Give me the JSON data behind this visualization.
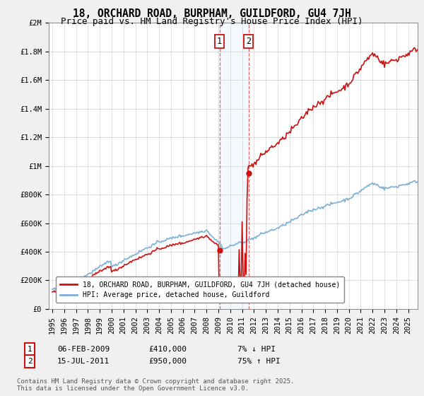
{
  "title": "18, ORCHARD ROAD, BURPHAM, GUILDFORD, GU4 7JH",
  "subtitle": "Price paid vs. HM Land Registry's House Price Index (HPI)",
  "ylim": [
    0,
    2000000
  ],
  "yticks": [
    0,
    200000,
    400000,
    600000,
    800000,
    1000000,
    1200000,
    1400000,
    1600000,
    1800000,
    2000000
  ],
  "ytick_labels": [
    "£0",
    "£200K",
    "£400K",
    "£600K",
    "£800K",
    "£1M",
    "£1.2M",
    "£1.4M",
    "£1.6M",
    "£1.8M",
    "£2M"
  ],
  "background_color": "#f0f0f0",
  "plot_bg": "#ffffff",
  "hpi_line_color": "#7bafd4",
  "price_line_color": "#cc1111",
  "transaction1_date": 2009.09,
  "transaction1_price": 410000,
  "transaction2_date": 2011.54,
  "transaction2_price": 950000,
  "shade_color": "#ddeeff",
  "legend1_label": "18, ORCHARD ROAD, BURPHAM, GUILDFORD, GU4 7JH (detached house)",
  "legend2_label": "HPI: Average price, detached house, Guildford",
  "annot1_label": "1",
  "annot2_label": "2",
  "annot1_date": "06-FEB-2009",
  "annot1_price": "£410,000",
  "annot1_hpi": "7% ↓ HPI",
  "annot2_date": "15-JUL-2011",
  "annot2_price": "£950,000",
  "annot2_hpi": "75% ↑ HPI",
  "copyright_text": "Contains HM Land Registry data © Crown copyright and database right 2025.\nThis data is licensed under the Open Government Licence v3.0.",
  "title_fontsize": 10.5,
  "subtitle_fontsize": 9
}
